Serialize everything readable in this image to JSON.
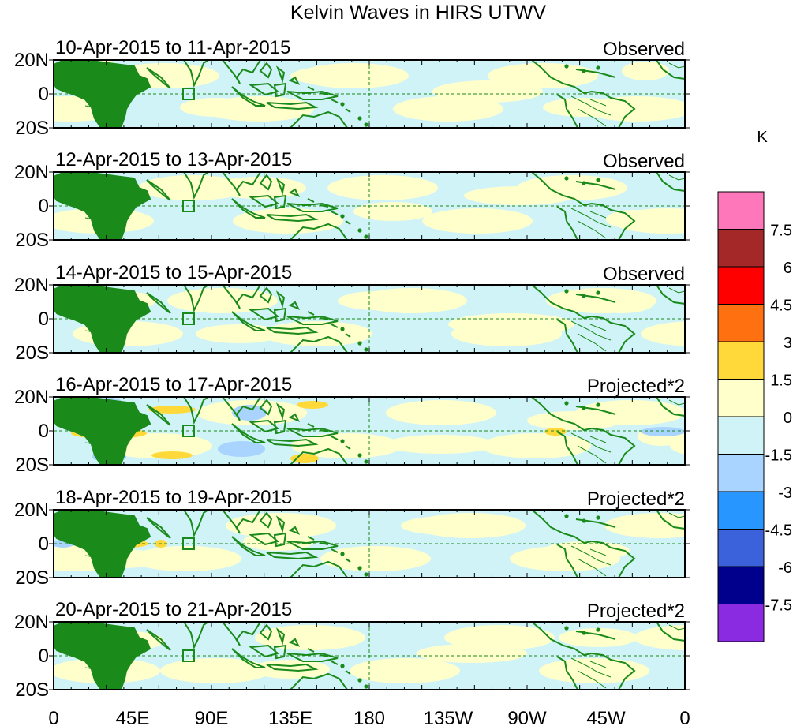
{
  "title": "Kelvin Waves in HIRS UTWV",
  "lat_labels": [
    "20N",
    "0",
    "20S"
  ],
  "lon_labels": [
    "0",
    "45E",
    "90E",
    "135E",
    "180",
    "135W",
    "90W",
    "45W",
    "0"
  ],
  "panels": [
    {
      "date_range": "10-Apr-2015 to 11-Apr-2015",
      "status": "Observed"
    },
    {
      "date_range": "12-Apr-2015 to 13-Apr-2015",
      "status": "Observed"
    },
    {
      "date_range": "14-Apr-2015 to 15-Apr-2015",
      "status": "Observed"
    },
    {
      "date_range": "16-Apr-2015 to 17-Apr-2015",
      "status": "Projected*2"
    },
    {
      "date_range": "18-Apr-2015 to 19-Apr-2015",
      "status": "Projected*2"
    },
    {
      "date_range": "20-Apr-2015 to 21-Apr-2015",
      "status": "Projected*2"
    }
  ],
  "colorbar": {
    "unit": "K",
    "levels": [
      "7.5",
      "6",
      "4.5",
      "3",
      "1.5",
      "0",
      "-1.5",
      "-3",
      "-4.5",
      "-6",
      "-7.5"
    ],
    "colors": [
      "#ff77bb",
      "#a52828",
      "#ff0000",
      "#ff7010",
      "#ffd93a",
      "#ffffcc",
      "#d0f3f8",
      "#a8d4ff",
      "#2796ff",
      "#3b62db",
      "#00008c",
      "#8a2be2"
    ]
  },
  "map_colors": {
    "land_line": "#1a8a1a",
    "equator_line": "#1a8a1a",
    "positive_weak": "#ffffcc",
    "negative_weak": "#d0f3f8",
    "positive_mid": "#ffd93a",
    "negative_mid": "#a8d4ff"
  }
}
